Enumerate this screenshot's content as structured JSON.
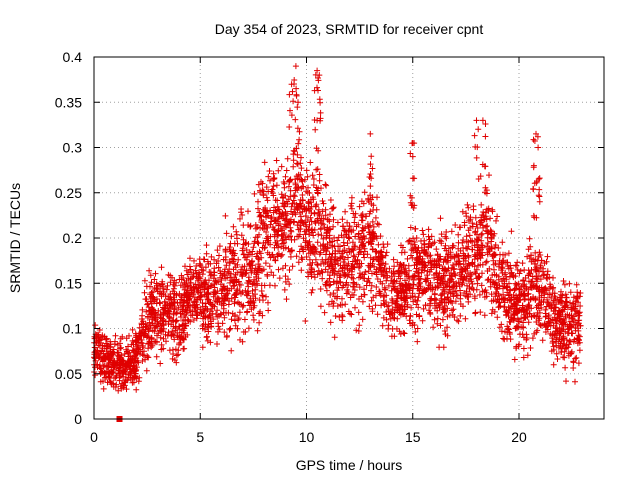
{
  "chart_data": {
    "type": "scatter",
    "title": "Day 354 of 2023, SRMTID for receiver cpnt",
    "xlabel": "GPS time / hours",
    "ylabel": "SRMTID / TECUs",
    "xlim": [
      0,
      24
    ],
    "ylim": [
      0,
      0.4
    ],
    "grid": true,
    "xticks": [
      0,
      5,
      10,
      15,
      20
    ],
    "xtick_labels": [
      "0",
      "5",
      "10",
      "15",
      "20"
    ],
    "yticks": [
      0,
      0.05,
      0.1,
      0.15,
      0.2,
      0.25,
      0.3,
      0.35,
      0.4
    ],
    "ytick_labels": [
      "0",
      "0.05",
      "0.1",
      "0.15",
      "0.2",
      "0.25",
      "0.3",
      "0.35",
      "0.4"
    ],
    "marker": "plus",
    "color": "#e00000",
    "square_marker": {
      "x": 1.2,
      "y": 0.0
    },
    "trend": {
      "description": "sampled envelope of the dense point cloud; each entry [x_hours, y_mean, y_spread]",
      "points": [
        [
          0.0,
          0.075,
          0.03
        ],
        [
          0.5,
          0.065,
          0.03
        ],
        [
          1.0,
          0.06,
          0.025
        ],
        [
          1.5,
          0.06,
          0.03
        ],
        [
          2.0,
          0.07,
          0.03
        ],
        [
          2.5,
          0.11,
          0.04
        ],
        [
          3.0,
          0.12,
          0.04
        ],
        [
          3.5,
          0.12,
          0.04
        ],
        [
          4.0,
          0.11,
          0.04
        ],
        [
          4.5,
          0.13,
          0.04
        ],
        [
          5.0,
          0.14,
          0.04
        ],
        [
          5.5,
          0.13,
          0.045
        ],
        [
          6.0,
          0.14,
          0.05
        ],
        [
          6.5,
          0.15,
          0.05
        ],
        [
          7.0,
          0.16,
          0.05
        ],
        [
          7.5,
          0.17,
          0.06
        ],
        [
          8.0,
          0.2,
          0.06
        ],
        [
          8.5,
          0.22,
          0.06
        ],
        [
          9.0,
          0.21,
          0.06
        ],
        [
          9.5,
          0.25,
          0.07
        ],
        [
          10.0,
          0.21,
          0.06
        ],
        [
          10.5,
          0.2,
          0.06
        ],
        [
          11.0,
          0.19,
          0.06
        ],
        [
          11.5,
          0.16,
          0.05
        ],
        [
          12.0,
          0.18,
          0.06
        ],
        [
          12.5,
          0.17,
          0.05
        ],
        [
          13.0,
          0.2,
          0.06
        ],
        [
          13.5,
          0.16,
          0.05
        ],
        [
          14.0,
          0.14,
          0.04
        ],
        [
          14.5,
          0.14,
          0.04
        ],
        [
          15.0,
          0.16,
          0.05
        ],
        [
          15.5,
          0.16,
          0.05
        ],
        [
          16.0,
          0.15,
          0.05
        ],
        [
          16.5,
          0.15,
          0.05
        ],
        [
          17.0,
          0.16,
          0.05
        ],
        [
          17.5,
          0.17,
          0.05
        ],
        [
          18.0,
          0.18,
          0.06
        ],
        [
          18.5,
          0.2,
          0.06
        ],
        [
          19.0,
          0.15,
          0.05
        ],
        [
          19.5,
          0.13,
          0.05
        ],
        [
          20.0,
          0.12,
          0.04
        ],
        [
          20.5,
          0.14,
          0.05
        ],
        [
          21.0,
          0.14,
          0.05
        ],
        [
          21.5,
          0.12,
          0.04
        ],
        [
          22.0,
          0.11,
          0.04
        ],
        [
          22.5,
          0.1,
          0.04
        ],
        [
          22.9,
          0.11,
          0.04
        ]
      ]
    },
    "peaks": [
      [
        9.3,
        0.37
      ],
      [
        9.5,
        0.39
      ],
      [
        9.6,
        0.35
      ],
      [
        10.5,
        0.385
      ],
      [
        10.6,
        0.38
      ],
      [
        10.5,
        0.33
      ],
      [
        13.0,
        0.315
      ],
      [
        15.0,
        0.305
      ],
      [
        15.0,
        0.29
      ],
      [
        18.0,
        0.33
      ],
      [
        18.3,
        0.33
      ],
      [
        20.8,
        0.315
      ],
      [
        20.9,
        0.3
      ],
      [
        20.7,
        0.28
      ]
    ],
    "sample_count": 3600
  }
}
